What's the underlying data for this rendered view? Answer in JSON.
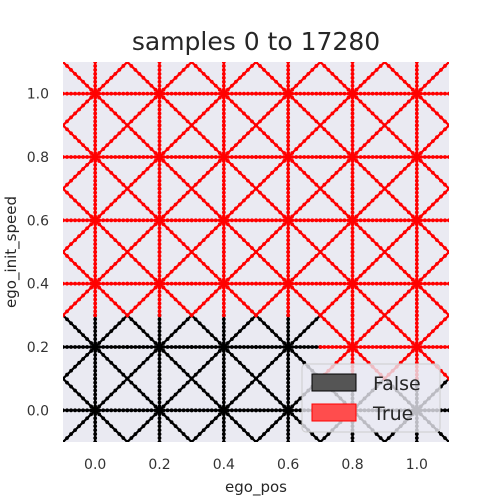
{
  "chart_data": {
    "type": "scatter",
    "title": "samples 0 to 17280",
    "xlabel": "ego_pos",
    "ylabel": "ego_init_speed",
    "xlim": [
      -0.1,
      1.1
    ],
    "ylim": [
      -0.1,
      1.1
    ],
    "xticks": [
      "0.0",
      "0.2",
      "0.4",
      "0.6",
      "0.8",
      "1.0"
    ],
    "yticks": [
      "0.0",
      "0.2",
      "0.4",
      "0.6",
      "0.8",
      "1.0"
    ],
    "grid": true,
    "legend_position": "lower right",
    "x": [
      0.0,
      0.2,
      0.4,
      0.6,
      0.8,
      1.0
    ],
    "y": [
      0.0,
      0.2,
      0.4,
      0.6,
      0.8,
      1.0
    ],
    "ray_offsets": [
      [
        -0.1,
        -0.1
      ],
      [
        -0.1,
        0.0
      ],
      [
        -0.1,
        0.1
      ],
      [
        0.0,
        -0.1
      ],
      [
        0.0,
        0.1
      ],
      [
        0.1,
        0.0
      ],
      [
        0.1,
        -0.1
      ],
      [
        0.1,
        0.1
      ]
    ],
    "series": [
      {
        "name": "False",
        "color": "#000000",
        "legend_color": "#555555",
        "points": [
          [
            0.0,
            0.0
          ],
          [
            0.2,
            0.0
          ],
          [
            0.4,
            0.0
          ],
          [
            0.6,
            0.0
          ],
          [
            0.8,
            0.0
          ],
          [
            1.0,
            0.0
          ],
          [
            0.0,
            0.2
          ],
          [
            0.2,
            0.2
          ],
          [
            0.4,
            0.2
          ],
          [
            0.6,
            0.2
          ]
        ]
      },
      {
        "name": "True",
        "color": "#ff0000",
        "legend_color": "#ff4d4d",
        "points": [
          [
            0.8,
            0.2
          ],
          [
            1.0,
            0.2
          ],
          [
            0.0,
            0.4
          ],
          [
            0.2,
            0.4
          ],
          [
            0.4,
            0.4
          ],
          [
            0.6,
            0.4
          ],
          [
            0.8,
            0.4
          ],
          [
            1.0,
            0.4
          ],
          [
            0.0,
            0.6
          ],
          [
            0.2,
            0.6
          ],
          [
            0.4,
            0.6
          ],
          [
            0.6,
            0.6
          ],
          [
            0.8,
            0.6
          ],
          [
            1.0,
            0.6
          ],
          [
            0.0,
            0.8
          ],
          [
            0.2,
            0.8
          ],
          [
            0.4,
            0.8
          ],
          [
            0.6,
            0.8
          ],
          [
            0.8,
            0.8
          ],
          [
            1.0,
            0.8
          ],
          [
            0.0,
            1.0
          ],
          [
            0.2,
            1.0
          ],
          [
            0.4,
            1.0
          ],
          [
            0.6,
            1.0
          ],
          [
            0.8,
            1.0
          ],
          [
            1.0,
            1.0
          ]
        ]
      }
    ]
  }
}
